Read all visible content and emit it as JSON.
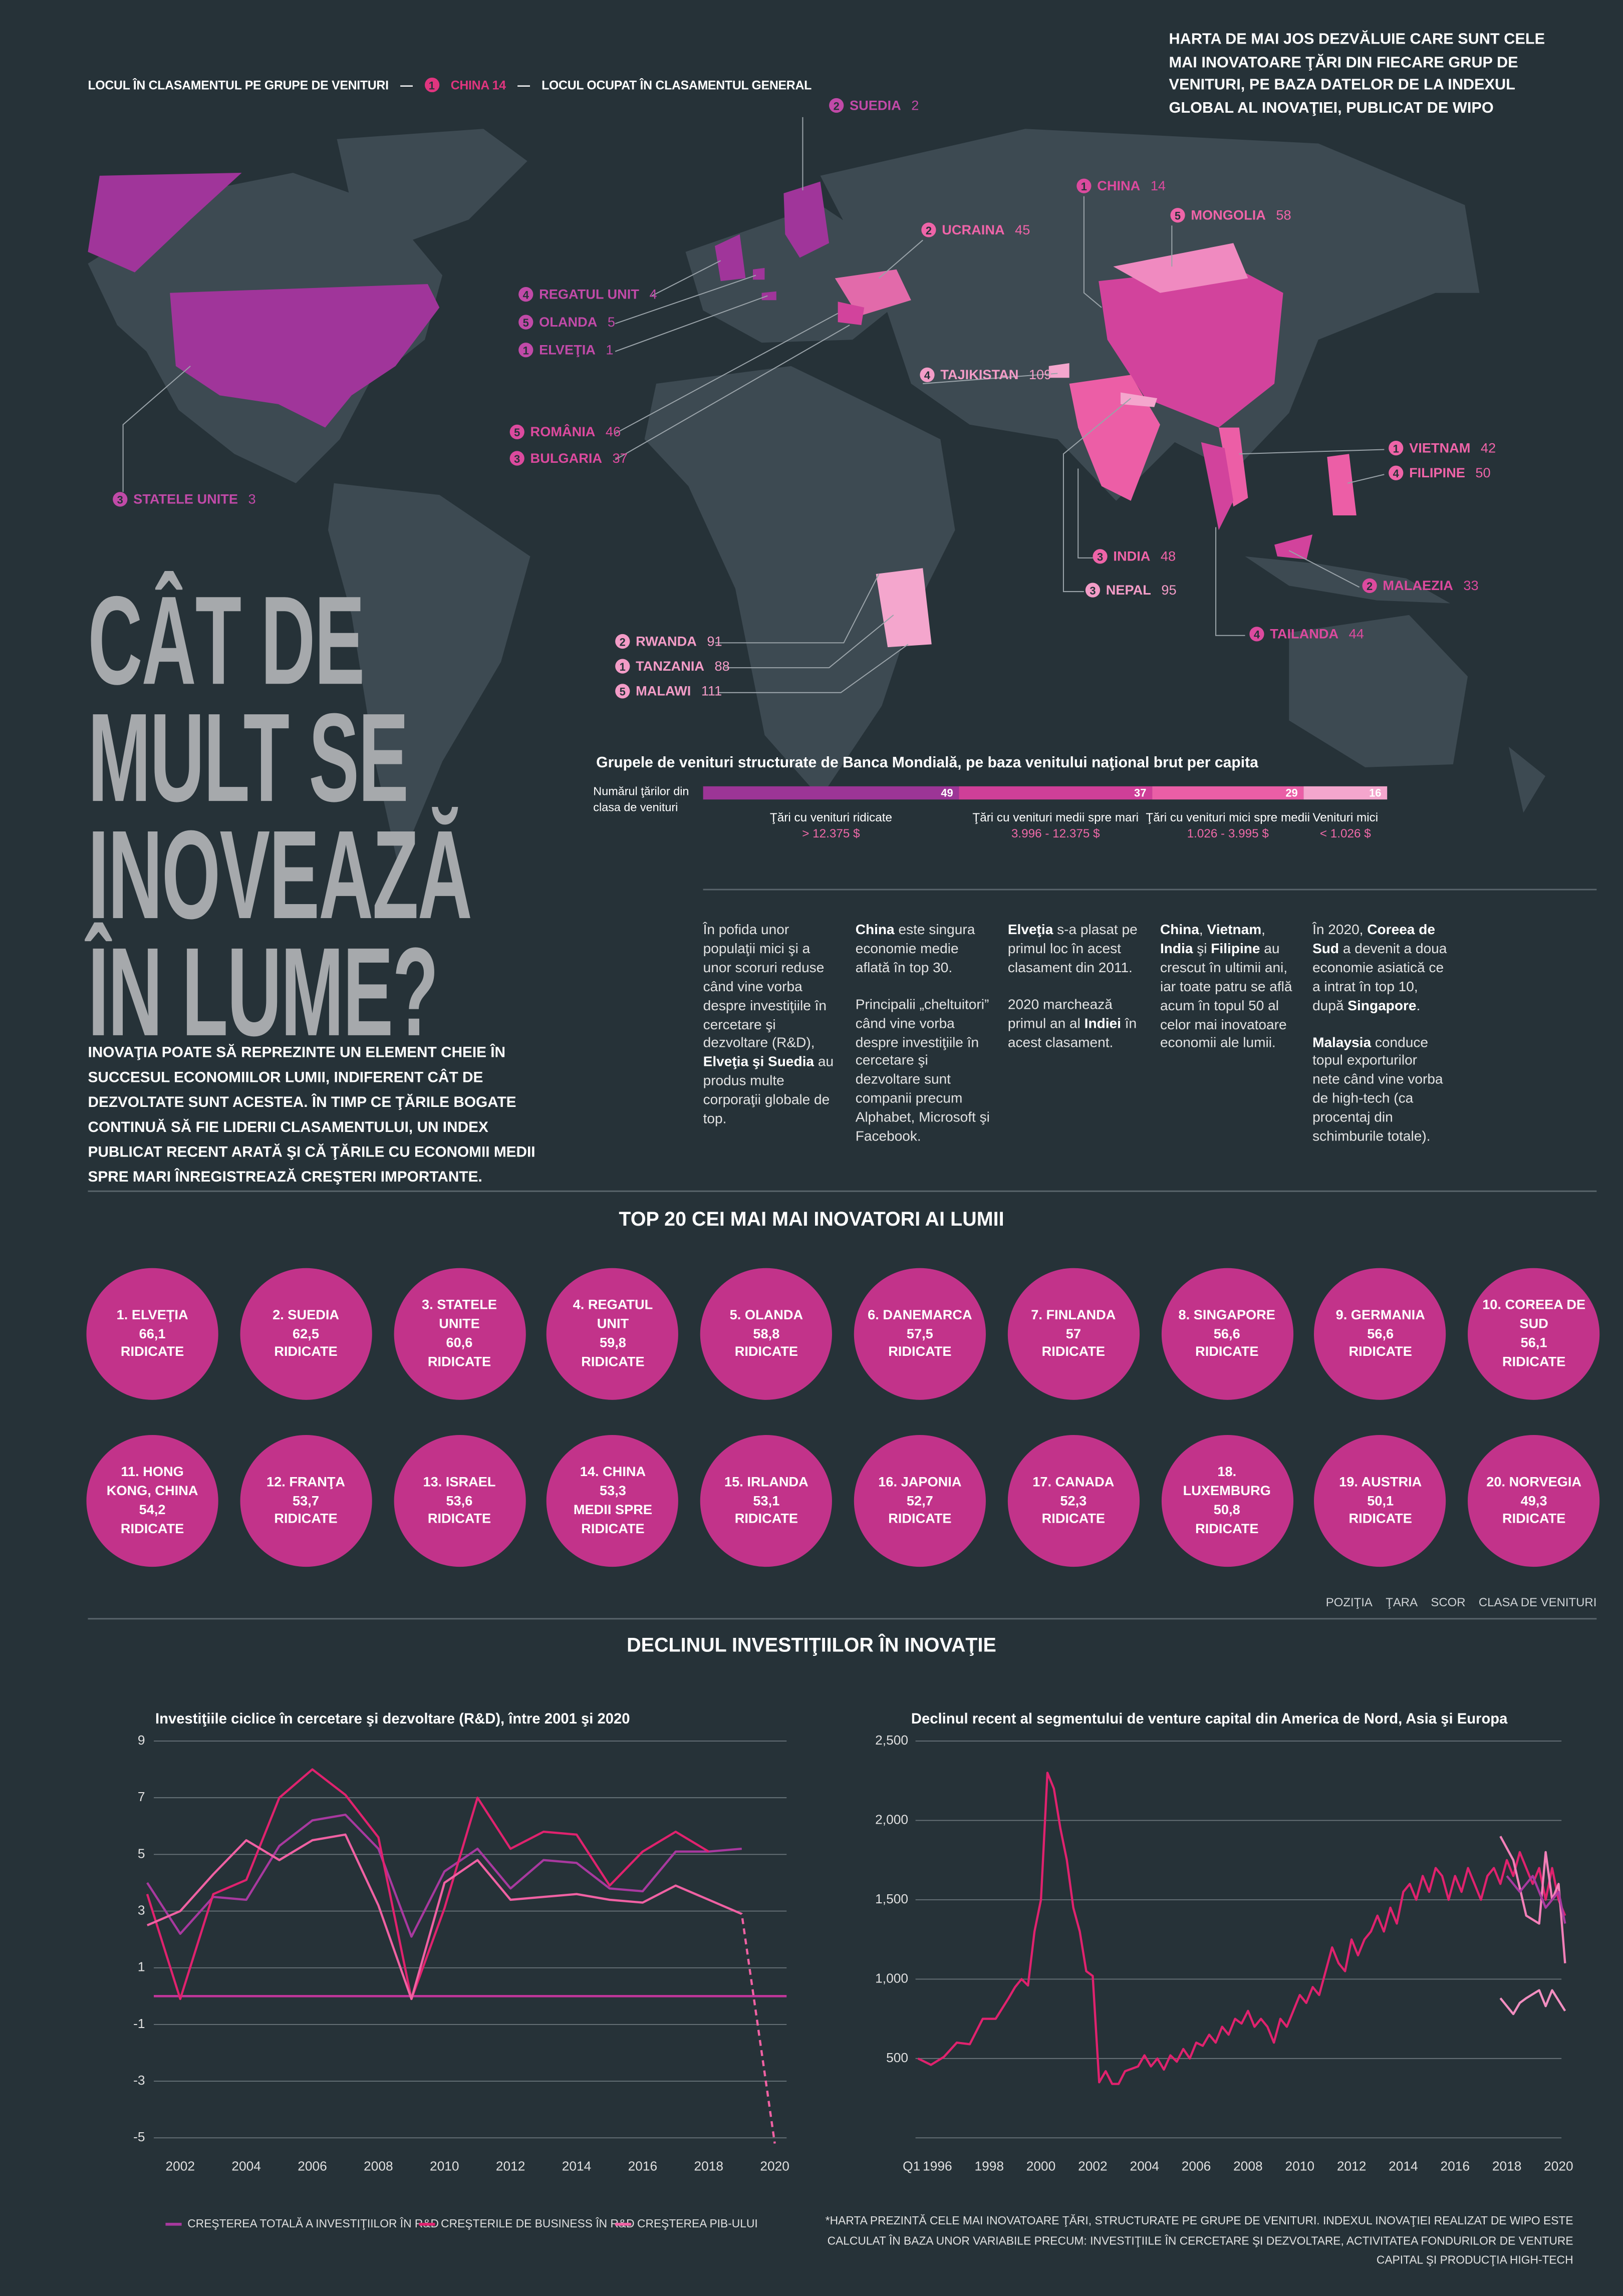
{
  "header": {
    "legend": {
      "left": "LOCUL ÎN CLASAMENTUL PE GRUPE DE VENITURI",
      "separator": "—",
      "sample_rank": 1,
      "sample_text": "CHINA 14",
      "right": "LOCUL OCUPAT ÎN CLASAMENTUL GENERAL"
    },
    "intro": "HARTA DE MAI JOS DEZVĂLUIE CARE SUNT CELE MAI INOVATOARE ŢĂRI DIN FIECARE GRUP DE VENITURI, PE BAZA DATELOR DE LA INDEXUL GLOBAL AL INOVAŢIEI, PUBLICAT DE WIPO",
    "title": [
      "CÂT DE",
      "MULT SE",
      "INOVEAZĂ",
      "ÎN LUME?"
    ],
    "subtitle": "INOVAŢIA POATE SĂ REPREZINTE UN ELEMENT CHEIE ÎN SUCCESUL ECONOMIILOR LUMII, INDIFERENT CÂT DE DEZVOLTATE SUNT ACESTEA. ÎN TIMP CE ŢĂRILE BOGATE CONTINUĂ SĂ FIE LIDERII CLASAMENTULUI, UN INDEX PUBLICAT RECENT ARATĂ ŞI CĂ ŢĂRILE CU ECONOMII MEDII SPRE MARI ÎNREGISTREAZĂ CREŞTERI IMPORTANTE."
  },
  "map_labels": [
    {
      "rank": 2,
      "country": "SUEDIA",
      "overall": 2,
      "color": "#c14aa8"
    },
    {
      "rank": 1,
      "country": "CHINA",
      "overall": 14,
      "color": "#dc4a9e"
    },
    {
      "rank": 5,
      "country": "MONGOLIA",
      "overall": 58,
      "color": "#ef64a8"
    },
    {
      "rank": 2,
      "country": "UCRAINA",
      "overall": 45,
      "color": "#ef64a8"
    },
    {
      "rank": 4,
      "country": "REGATUL UNIT",
      "overall": 4,
      "color": "#c14aa8"
    },
    {
      "rank": 5,
      "country": "OLANDA",
      "overall": 5,
      "color": "#c14aa8"
    },
    {
      "rank": 1,
      "country": "ELVEŢIA",
      "overall": 1,
      "color": "#c14aa8"
    },
    {
      "rank": 4,
      "country": "TAJIKISTAN",
      "overall": 109,
      "color": "#f39cc7"
    },
    {
      "rank": 5,
      "country": "ROMÂNIA",
      "overall": 46,
      "color": "#dc4a9e"
    },
    {
      "rank": 3,
      "country": "BULGARIA",
      "overall": 37,
      "color": "#dc4a9e"
    },
    {
      "rank": 3,
      "country": "STATELE UNITE",
      "overall": 3,
      "color": "#c14aa8"
    },
    {
      "rank": 1,
      "country": "VIETNAM",
      "overall": 42,
      "color": "#ef64a8"
    },
    {
      "rank": 4,
      "country": "FILIPINE",
      "overall": 50,
      "color": "#ef64a8"
    },
    {
      "rank": 3,
      "country": "INDIA",
      "overall": 48,
      "color": "#ef64a8"
    },
    {
      "rank": 3,
      "country": "NEPAL",
      "overall": 95,
      "color": "#f39cc7"
    },
    {
      "rank": 2,
      "country": "MALAEZIA",
      "overall": 33,
      "color": "#dc4a9e"
    },
    {
      "rank": 4,
      "country": "TAILANDA",
      "overall": 44,
      "color": "#dc4a9e"
    },
    {
      "rank": 2,
      "country": "RWANDA",
      "overall": 91,
      "color": "#f39cc7"
    },
    {
      "rank": 1,
      "country": "TANZANIA",
      "overall": 88,
      "color": "#f39cc7"
    },
    {
      "rank": 5,
      "country": "MALAWI",
      "overall": 111,
      "color": "#f39cc7"
    }
  ],
  "income_groups": {
    "title": "Grupele de venituri structurate de Banca Mondială, pe baza venitului naţional brut per capita",
    "count_label": "Numărul ţărilor din clasa de venituri",
    "groups": [
      {
        "name": "Ţări cu venituri ridicate",
        "range": "> 12.375 $",
        "count": 49,
        "color": "#9c3596"
      },
      {
        "name": "Ţări cu venituri medii spre mari",
        "range": "3.996 - 12.375 $",
        "count": 37,
        "color": "#cf3f98"
      },
      {
        "name": "Ţări cu venituri mici spre medii",
        "range": "1.026 - 3.995 $",
        "count": 29,
        "color": "#ea5ea6"
      },
      {
        "name": "Venituri mici",
        "range": "< 1.026 $",
        "count": 16,
        "color": "#f4a6cd"
      }
    ]
  },
  "notes": [
    [
      [
        {
          "text": "În pofida unor populaţii mici şi a unor scoruri reduse când vine vorba despre investiţiile în cercetare şi dezvoltare (R&D), "
        },
        {
          "text": "Elveţia şi Suedia",
          "bold": true
        },
        {
          "text": " au produs multe corporaţii globale de top."
        }
      ]
    ],
    [
      [
        {
          "text": "China",
          "bold": true
        },
        {
          "text": " este singura economie medie aflată în top 30."
        }
      ],
      [
        {
          "text": "Principalii „cheltuitori” când vine vorba despre investiţiile în cercetare şi dezvoltare sunt companii precum Alphabet, Microsoft şi Facebook."
        }
      ]
    ],
    [
      [
        {
          "text": "Elveţia",
          "bold": true
        },
        {
          "text": " s-a plasat pe primul loc în acest clasament din 2011."
        }
      ],
      [
        {
          "text": "2020 marchează primul an al "
        },
        {
          "text": "Indiei",
          "bold": true
        },
        {
          "text": " în acest clasament."
        }
      ]
    ],
    [
      [
        {
          "text": "China",
          "bold": true
        },
        {
          "text": ", "
        },
        {
          "text": "Vietnam",
          "bold": true
        },
        {
          "text": ", "
        },
        {
          "text": "India",
          "bold": true
        },
        {
          "text": " şi "
        },
        {
          "text": "Filipine",
          "bold": true
        },
        {
          "text": " au crescut în ultimii ani, iar toate patru se află acum în topul 50 al celor mai inovatoare economii ale lumii."
        }
      ]
    ],
    [
      [
        {
          "text": "În 2020, "
        },
        {
          "text": "Coreea de Sud",
          "bold": true
        },
        {
          "text": " a devenit a doua economie asiatică ce a intrat în top 10, după "
        },
        {
          "text": "Singapore",
          "bold": true
        },
        {
          "text": "."
        }
      ],
      [
        {
          "text": "Malaysia",
          "bold": true
        },
        {
          "text": " conduce topul exporturilor nete când vine vorba de high-tech (ca procentaj din schimburile totale)."
        }
      ]
    ]
  ],
  "top20": {
    "title": "TOP 20 CEI MAI MAI INOVATORI AI LUMII",
    "items": [
      {
        "name": "1. ELVEŢIA",
        "score": "66,1",
        "income": "RIDICATE"
      },
      {
        "name": "2. SUEDIA",
        "score": "62,5",
        "income": "RIDICATE"
      },
      {
        "name": "3. STATELE UNITE",
        "score": "60,6",
        "income": "RIDICATE"
      },
      {
        "name": "4. REGATUL UNIT",
        "score": "59,8",
        "income": "RIDICATE"
      },
      {
        "name": "5. OLANDA",
        "score": "58,8",
        "income": "RIDICATE"
      },
      {
        "name": "6. DANEMARCA",
        "score": "57,5",
        "income": "RIDICATE"
      },
      {
        "name": "7. FINLANDA",
        "score": "57",
        "income": "RIDICATE"
      },
      {
        "name": "8. SINGAPORE",
        "score": "56,6",
        "income": "RIDICATE"
      },
      {
        "name": "9. GERMANIA",
        "score": "56,6",
        "income": "RIDICATE"
      },
      {
        "name": "10. COREEA DE SUD",
        "score": "56,1",
        "income": "RIDICATE"
      },
      {
        "name": "11. HONG KONG, CHINA",
        "score": "54,2",
        "income": "RIDICATE"
      },
      {
        "name": "12. FRANŢA",
        "score": "53,7",
        "income": "RIDICATE"
      },
      {
        "name": "13. ISRAEL",
        "score": "53,6",
        "income": "RIDICATE"
      },
      {
        "name": "14. CHINA",
        "score": "53,3",
        "income": "MEDII SPRE RIDICATE"
      },
      {
        "name": "15. IRLANDA",
        "score": "53,1",
        "income": "RIDICATE"
      },
      {
        "name": "16. JAPONIA",
        "score": "52,7",
        "income": "RIDICATE"
      },
      {
        "name": "17. CANADA",
        "score": "52,3",
        "income": "RIDICATE"
      },
      {
        "name": "18. LUXEMBURG",
        "score": "50,8",
        "income": "RIDICATE"
      },
      {
        "name": "19. AUSTRIA",
        "score": "50,1",
        "income": "RIDICATE"
      },
      {
        "name": "20. NORVEGIA",
        "score": "49,3",
        "income": "RIDICATE"
      }
    ],
    "legend": [
      "POZIŢIA",
      "ŢARA",
      "SCOR",
      "CLASA DE VENITURI"
    ]
  },
  "section_title": "DECLINUL INVESTIŢIILOR ÎN INOVAŢIE",
  "chart_data": [
    {
      "type": "line",
      "title": "Investiţiile ciclice în cercetare şi dezvoltare (R&D), între 2001 şi 2020",
      "x": [
        2001,
        2002,
        2003,
        2004,
        2005,
        2006,
        2007,
        2008,
        2009,
        2010,
        2011,
        2012,
        2013,
        2014,
        2015,
        2016,
        2017,
        2018,
        2019,
        2020
      ],
      "xlim": [
        2001,
        2020.5
      ],
      "xticks": [
        2002,
        2004,
        2006,
        2008,
        2010,
        2012,
        2014,
        2016,
        2018,
        2020
      ],
      "ylim": [
        -5,
        9
      ],
      "yticks": [
        9,
        7,
        5,
        3,
        1,
        -1,
        -3,
        -5
      ],
      "grid": true,
      "reference_line": {
        "value": 0,
        "color": "#c0369a"
      },
      "series": [
        {
          "name": "CREŞTEREA TOTALĂ A INVESTIŢIILOR ÎN R&D",
          "color": "#a8399f",
          "values": [
            4.0,
            2.2,
            3.5,
            3.4,
            5.3,
            6.2,
            6.4,
            5.2,
            2.1,
            4.4,
            5.2,
            3.8,
            4.8,
            4.7,
            3.8,
            3.7,
            5.1,
            5.1,
            5.2,
            null
          ]
        },
        {
          "name": "CREŞTERILE DE BUSINESS ÎN R&D",
          "color": "#e0226e",
          "values": [
            3.6,
            -0.1,
            3.6,
            4.1,
            7.0,
            8.0,
            7.1,
            5.6,
            -0.1,
            3.1,
            7.0,
            5.2,
            5.8,
            5.7,
            3.9,
            5.1,
            5.8,
            5.1,
            null,
            null
          ]
        },
        {
          "name": "CREŞTEREA PIB-ULUI",
          "color": "#f061a3",
          "dashed_last_segment": true,
          "values": [
            2.5,
            3.0,
            4.3,
            5.5,
            4.8,
            5.5,
            5.7,
            3.2,
            -0.1,
            4.0,
            4.8,
            3.4,
            3.5,
            3.6,
            3.4,
            3.3,
            3.9,
            3.4,
            2.9,
            -5.2
          ]
        }
      ]
    },
    {
      "type": "line",
      "title": "Declinul recent al segmentului de venture capital din America de Nord, Asia şi Europa",
      "xlim": [
        1995,
        2021
      ],
      "xticks": [
        {
          "value": 1995,
          "label": "Q1"
        },
        1996,
        1998,
        2000,
        2002,
        2004,
        2006,
        2008,
        2010,
        2012,
        2014,
        2016,
        2018,
        2020
      ],
      "ylim": [
        0,
        2500
      ],
      "yticks": [
        500,
        {
          "value": 1000,
          "label": "1,000"
        },
        {
          "value": 1500,
          "label": "1,500"
        },
        {
          "value": 2000,
          "label": "2,000"
        },
        {
          "value": 2500,
          "label": "2,500"
        }
      ],
      "grid": true,
      "series": [
        {
          "color": "#e0226e",
          "x": [
            1995.25,
            1995.75,
            1996.25,
            1996.75,
            1997.25,
            1997.75,
            1998.25,
            1998.75,
            1999.0,
            1999.25,
            1999.5,
            1999.75,
            2000.0,
            2000.25,
            2000.5,
            2000.75,
            2001.0,
            2001.25,
            2001.5,
            2001.75,
            2002.0,
            2002.25,
            2002.5,
            2002.75,
            2003.0,
            2003.25,
            2003.75,
            2004.0,
            2004.25,
            2004.5,
            2004.75,
            2005.0,
            2005.25,
            2005.5,
            2005.75,
            2006.0,
            2006.25,
            2006.5,
            2006.75,
            2007.0,
            2007.25,
            2007.5,
            2007.75,
            2008.0,
            2008.25,
            2008.5,
            2008.75,
            2009.0,
            2009.25,
            2009.5,
            2009.75,
            2010.0,
            2010.25,
            2010.5,
            2010.75,
            2011.0,
            2011.25,
            2011.5,
            2011.75,
            2012.0,
            2012.25,
            2012.5,
            2012.75,
            2013.0,
            2013.25,
            2013.5,
            2013.75,
            2014.0,
            2014.25,
            2014.5,
            2014.75,
            2015.0,
            2015.25,
            2015.5,
            2015.75,
            2016.0,
            2016.25,
            2016.5,
            2016.75,
            2017.0,
            2017.25,
            2017.5,
            2017.75,
            2018.0,
            2018.25,
            2018.5,
            2018.75,
            2019.0,
            2019.25,
            2019.5,
            2019.75,
            2020.0,
            2020.25
          ],
          "values": [
            500,
            460,
            510,
            600,
            590,
            750,
            750,
            880,
            950,
            1000,
            960,
            1300,
            1500,
            2300,
            2200,
            1950,
            1750,
            1450,
            1300,
            1050,
            1020,
            350,
            420,
            340,
            340,
            420,
            450,
            520,
            450,
            500,
            430,
            520,
            480,
            560,
            500,
            600,
            580,
            650,
            600,
            700,
            650,
            750,
            720,
            800,
            700,
            750,
            700,
            600,
            750,
            700,
            800,
            900,
            850,
            950,
            900,
            1050,
            1200,
            1100,
            1050,
            1250,
            1150,
            1250,
            1300,
            1400,
            1300,
            1450,
            1350,
            1550,
            1600,
            1500,
            1650,
            1550,
            1700,
            1650,
            1500,
            1650,
            1550,
            1700,
            1600,
            1500,
            1650,
            1700,
            1600,
            1750,
            1650,
            1800,
            1700,
            1600,
            1700,
            1500,
            1700,
            1500,
            1400
          ]
        },
        {
          "color": "#f37fb8",
          "x": [
            2017.75,
            2018.25,
            2018.75,
            2019.25,
            2019.5,
            2019.75,
            2020.0,
            2020.25
          ],
          "values": [
            1900,
            1750,
            1400,
            1350,
            1800,
            1500,
            1600,
            1100
          ]
        },
        {
          "color": "#a8399f",
          "x": [
            2018.0,
            2018.5,
            2019.0,
            2019.5,
            2020.0,
            2020.25
          ],
          "values": [
            1650,
            1550,
            1650,
            1450,
            1550,
            1350
          ]
        },
        {
          "color": "#f28ec0",
          "x": [
            2017.75,
            2018.25,
            2018.5,
            2018.75,
            2019.25,
            2019.5,
            2019.75,
            2020.25
          ],
          "values": [
            880,
            780,
            850,
            880,
            930,
            830,
            930,
            800
          ]
        }
      ]
    }
  ],
  "footnote": "*HARTA PREZINTĂ CELE MAI INOVATOARE ŢĂRI, STRUCTURATE PE GRUPE DE VENITURI. INDEXUL INOVAŢIEI REALIZAT DE WIPO ESTE CALCULAT ÎN BAZA UNOR VARIABILE PRECUM: INVESTIŢIILE ÎN CERCETARE ŞI DEZVOLTARE, ACTIVITATEA FONDURILOR DE VENTURE CAPITAL ŞI PRODUCŢIA HIGH-TECH"
}
